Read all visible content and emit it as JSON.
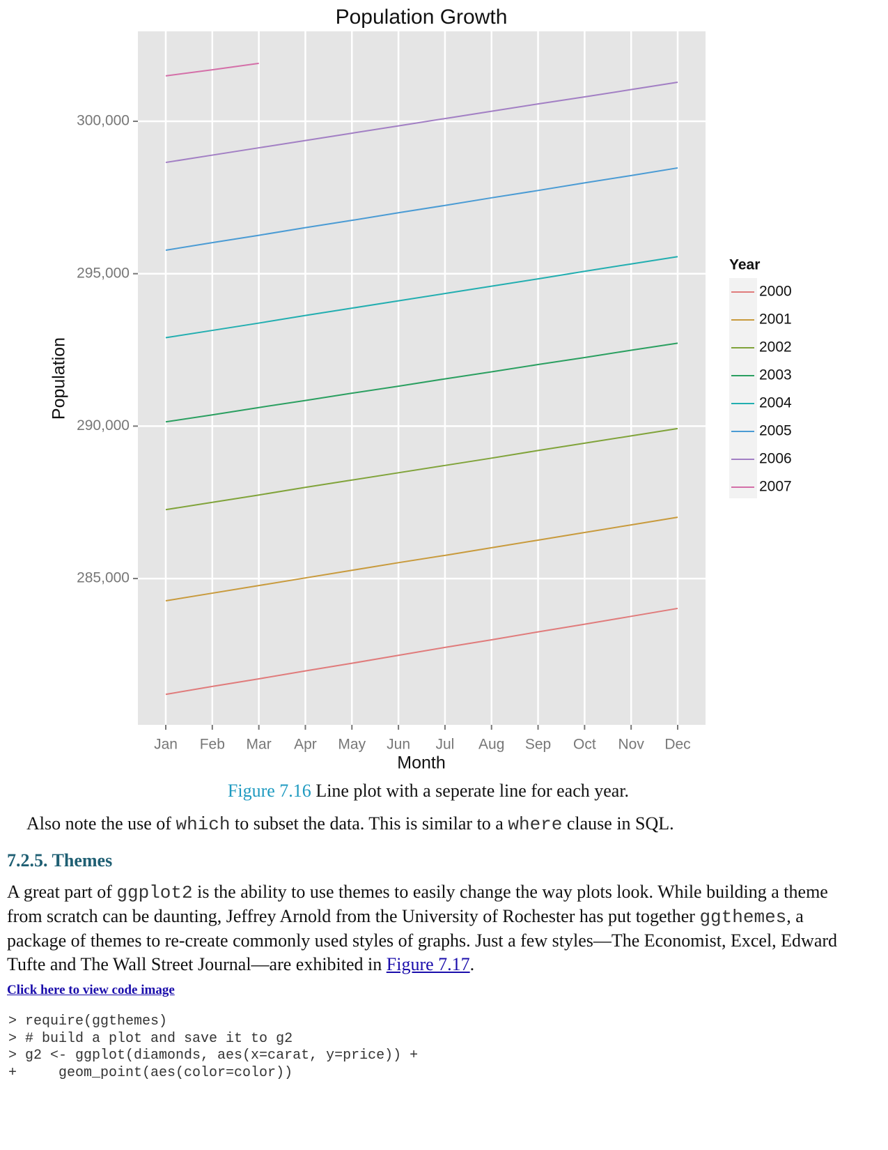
{
  "chart_data": {
    "type": "line",
    "title": "Population Growth",
    "x_label": "Month",
    "y_label": "Population",
    "categories": [
      "Jan",
      "Feb",
      "Mar",
      "Apr",
      "May",
      "Jun",
      "Jul",
      "Aug",
      "Sep",
      "Oct",
      "Nov",
      "Dec"
    ],
    "ylim": [
      280200,
      302950
    ],
    "yticks": [
      {
        "value": 285000,
        "label": "285,000"
      },
      {
        "value": 290000,
        "label": "290,000"
      },
      {
        "value": 295000,
        "label": "295,000"
      },
      {
        "value": 300000,
        "label": "300,000"
      }
    ],
    "grid": true,
    "legend_title": "Year",
    "legend": "right",
    "series": [
      {
        "name": "2000",
        "color": "#e07b7b",
        "values": [
          281200,
          281460,
          281710,
          281970,
          282220,
          282480,
          282740,
          282990,
          283250,
          283500,
          283760,
          284020
        ]
      },
      {
        "name": "2001",
        "color": "#c89a3c",
        "values": [
          284270,
          284520,
          284770,
          285020,
          285270,
          285520,
          285760,
          286010,
          286260,
          286510,
          286760,
          287010
        ]
      },
      {
        "name": "2002",
        "color": "#80a33a",
        "values": [
          287260,
          287500,
          287740,
          287990,
          288230,
          288470,
          288710,
          288950,
          289200,
          289440,
          289680,
          289920
        ]
      },
      {
        "name": "2003",
        "color": "#2a9f60",
        "values": [
          290140,
          290370,
          290610,
          290840,
          291080,
          291310,
          291550,
          291780,
          292020,
          292250,
          292490,
          292720
        ]
      },
      {
        "name": "2004",
        "color": "#22aeb0",
        "values": [
          292900,
          293140,
          293380,
          293630,
          293870,
          294110,
          294350,
          294590,
          294830,
          295080,
          295320,
          295560
        ]
      },
      {
        "name": "2005",
        "color": "#4a9bd4",
        "values": [
          295770,
          296020,
          296260,
          296510,
          296750,
          297000,
          297240,
          297490,
          297730,
          297980,
          298220,
          298470
        ]
      },
      {
        "name": "2006",
        "color": "#a27fc4",
        "values": [
          298650,
          298890,
          299130,
          299370,
          299610,
          299850,
          300090,
          300330,
          300570,
          300800,
          301040,
          301280
        ]
      },
      {
        "name": "2007",
        "color": "#d46fa8",
        "values": [
          301490,
          301690,
          301900,
          null,
          null,
          null,
          null,
          null,
          null,
          null,
          null,
          null
        ]
      }
    ]
  },
  "caption": {
    "label": "Figure 7.16",
    "text": "Line plot with a seperate line for each year."
  },
  "note": [
    "Also note the use of",
    "which",
    "to subset the data. This is similar to a",
    "where",
    "clause in SQL."
  ],
  "heading": "7.2.5. Themes",
  "para": [
    "A great part of",
    "ggplot2",
    "is the ability to use themes to easily change the way plots look. While building a theme from scratch can be daunting, Jeffrey Arnold from the University of Rochester has put together",
    "ggthemes",
    ", a package of themes to re-create commonly used styles of graphs. Just a few styles—The Economist, Excel, Edward Tufte and The Wall Street Journal—are exhibited in",
    "Figure 7.17",
    "."
  ],
  "link": "Click here to view code image",
  "code": [
    "> require(ggthemes)",
    "> # build a plot and save it to g2",
    "> g2 <- ggplot(diamonds, aes(x=carat, y=price)) +",
    "+     geom_point(aes(color=color))"
  ]
}
